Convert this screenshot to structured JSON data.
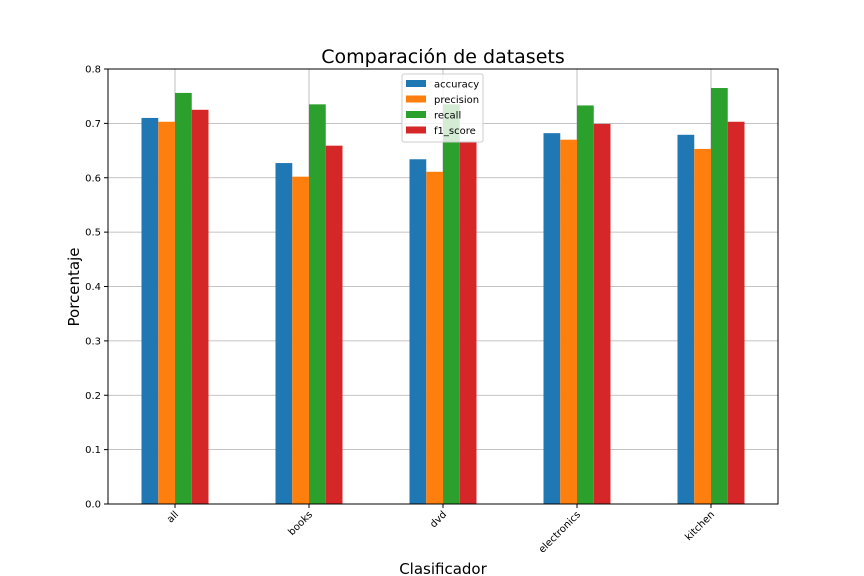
{
  "chart_data": {
    "type": "bar",
    "title": "Comparación de datasets",
    "xlabel": "Clasificador",
    "ylabel": "Porcentaje",
    "categories": [
      "all",
      "books",
      "dvd",
      "electronics",
      "kitchen"
    ],
    "series": [
      {
        "name": "accuracy",
        "color": "#1f77b4",
        "values": [
          0.71,
          0.627,
          0.634,
          0.682,
          0.679
        ]
      },
      {
        "name": "precision",
        "color": "#ff7f0e",
        "values": [
          0.703,
          0.602,
          0.611,
          0.67,
          0.653
        ]
      },
      {
        "name": "recall",
        "color": "#2ca02c",
        "values": [
          0.756,
          0.735,
          0.735,
          0.733,
          0.765
        ]
      },
      {
        "name": "f1_score",
        "color": "#d62728",
        "values": [
          0.725,
          0.659,
          0.665,
          0.699,
          0.703
        ]
      }
    ],
    "ylim": [
      0,
      0.8
    ],
    "yticks": [
      "0.0",
      "0.1",
      "0.2",
      "0.3",
      "0.4",
      "0.5",
      "0.6",
      "0.7",
      "0.8"
    ],
    "grid": true,
    "legend_position": "top-center"
  }
}
